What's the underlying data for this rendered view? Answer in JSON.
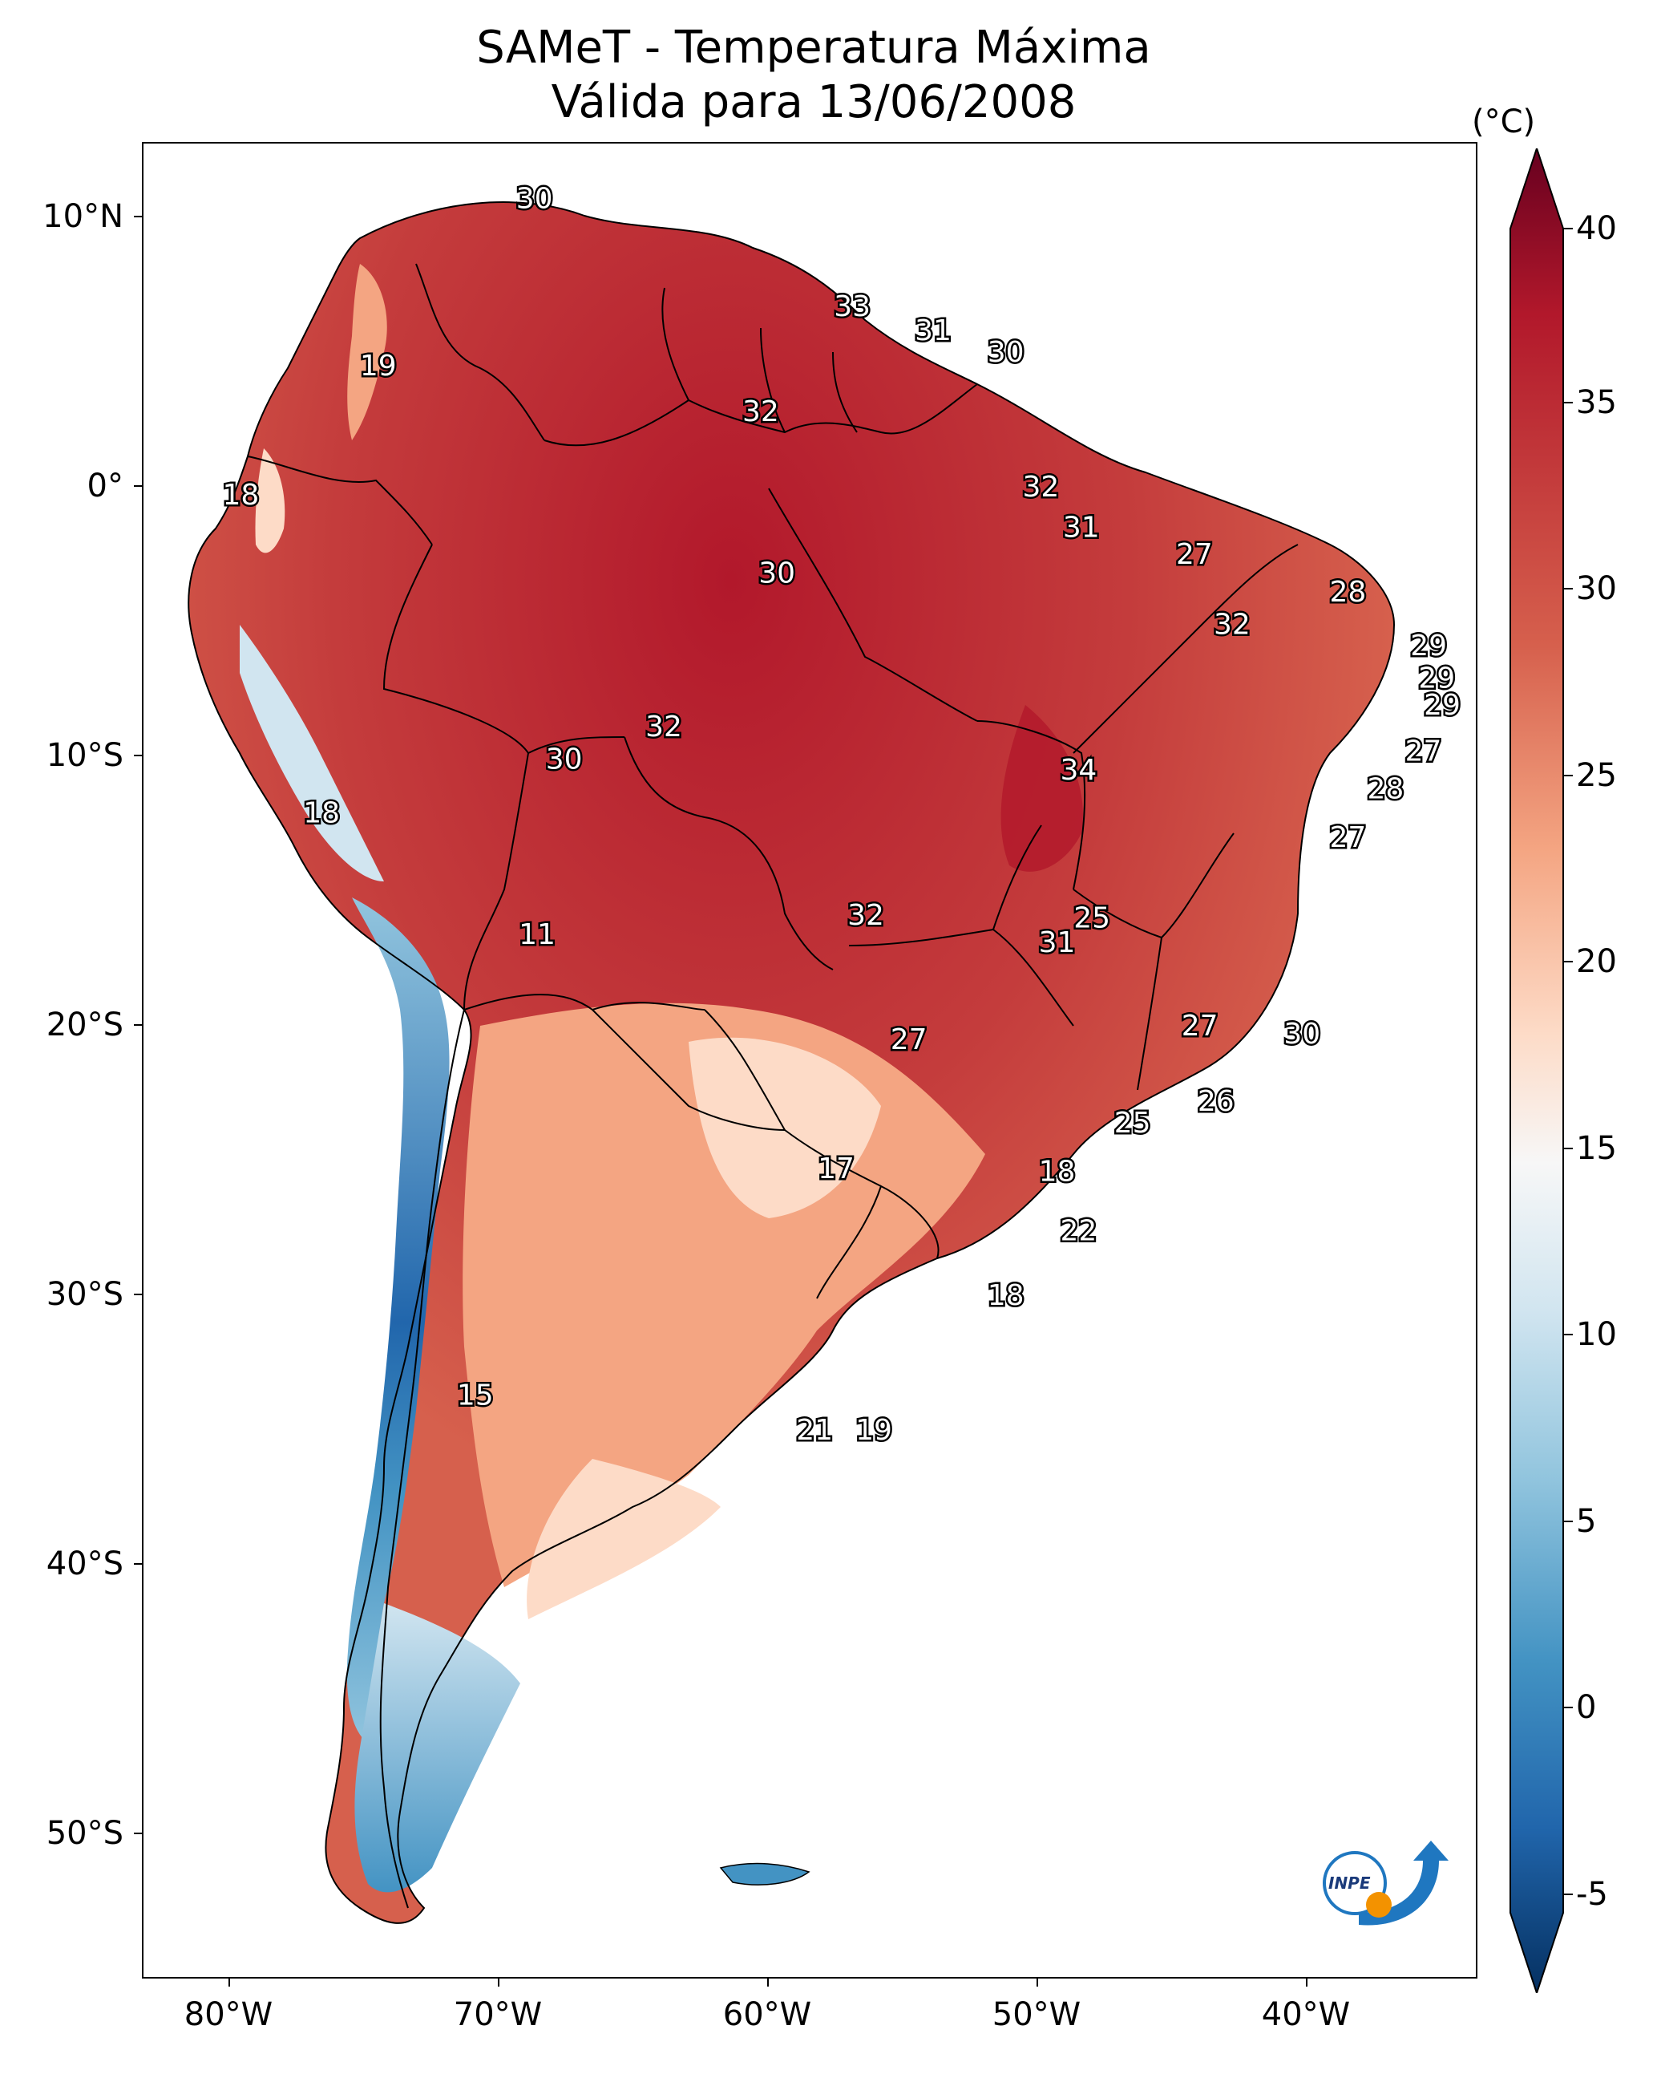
{
  "title": {
    "line1": "SAMeT - Temperatura Máxima",
    "line2": "Válida para 13/06/2008"
  },
  "axes": {
    "lat_ticks": [
      "10°N",
      "0°",
      "10°S",
      "20°S",
      "30°S",
      "40°S",
      "50°S"
    ],
    "lon_ticks": [
      "80°W",
      "70°W",
      "60°W",
      "50°W",
      "40°W"
    ]
  },
  "colorbar": {
    "unit": "(°C)",
    "ticks": [
      "40",
      "35",
      "30",
      "25",
      "20",
      "15",
      "10",
      "5",
      "0",
      "-5"
    ],
    "colors": [
      "#67001f",
      "#b2182b",
      "#d6604d",
      "#f4a582",
      "#fddbc7",
      "#f7f7f7",
      "#d1e5f0",
      "#92c5de",
      "#4393c3",
      "#2166ac",
      "#053061"
    ]
  },
  "contour_labels": [
    {
      "text": "30",
      "lon": -68.7,
      "lat": 10.7
    },
    {
      "text": "33",
      "lon": -56.9,
      "lat": 6.7
    },
    {
      "text": "31",
      "lon": -53.9,
      "lat": 5.8
    },
    {
      "text": "30",
      "lon": -51.2,
      "lat": 5.0
    },
    {
      "text": "19",
      "lon": -74.5,
      "lat": 4.5
    },
    {
      "text": "32",
      "lon": -60.3,
      "lat": 2.8
    },
    {
      "text": "18",
      "lon": -79.6,
      "lat": -0.3
    },
    {
      "text": "32",
      "lon": -49.9,
      "lat": 0.0
    },
    {
      "text": "31",
      "lon": -48.4,
      "lat": -1.5
    },
    {
      "text": "27",
      "lon": -44.2,
      "lat": -2.5
    },
    {
      "text": "30",
      "lon": -59.7,
      "lat": -3.2
    },
    {
      "text": "28",
      "lon": -38.5,
      "lat": -3.9
    },
    {
      "text": "32",
      "lon": -42.8,
      "lat": -5.1
    },
    {
      "text": "29",
      "lon": -35.5,
      "lat": -5.9
    },
    {
      "text": "29",
      "lon": -35.2,
      "lat": -7.1
    },
    {
      "text": "29",
      "lon": -35.0,
      "lat": -8.1
    },
    {
      "text": "32",
      "lon": -63.9,
      "lat": -8.9
    },
    {
      "text": "27",
      "lon": -35.7,
      "lat": -9.8
    },
    {
      "text": "30",
      "lon": -67.6,
      "lat": -10.1
    },
    {
      "text": "34",
      "lon": -48.5,
      "lat": -10.5
    },
    {
      "text": "28",
      "lon": -37.1,
      "lat": -11.2
    },
    {
      "text": "18",
      "lon": -76.6,
      "lat": -12.1
    },
    {
      "text": "27",
      "lon": -38.5,
      "lat": -13.0
    },
    {
      "text": "32",
      "lon": -56.4,
      "lat": -15.9
    },
    {
      "text": "25",
      "lon": -48.0,
      "lat": -16.0
    },
    {
      "text": "31",
      "lon": -49.3,
      "lat": -16.9
    },
    {
      "text": "11",
      "lon": -68.6,
      "lat": -16.6
    },
    {
      "text": "27",
      "lon": -44.0,
      "lat": -20.0
    },
    {
      "text": "30",
      "lon": -40.2,
      "lat": -20.3
    },
    {
      "text": "27",
      "lon": -54.8,
      "lat": -20.5
    },
    {
      "text": "26",
      "lon": -43.4,
      "lat": -22.8
    },
    {
      "text": "25",
      "lon": -46.5,
      "lat": -23.6
    },
    {
      "text": "17",
      "lon": -57.5,
      "lat": -25.3
    },
    {
      "text": "18",
      "lon": -49.3,
      "lat": -25.4
    },
    {
      "text": "22",
      "lon": -48.5,
      "lat": -27.6
    },
    {
      "text": "18",
      "lon": -51.2,
      "lat": -30.0
    },
    {
      "text": "15",
      "lon": -70.9,
      "lat": -33.7
    },
    {
      "text": "21",
      "lon": -58.3,
      "lat": -35.0
    },
    {
      "text": "19",
      "lon": -56.1,
      "lat": -35.0
    }
  ],
  "logo": {
    "text": "INPE"
  }
}
